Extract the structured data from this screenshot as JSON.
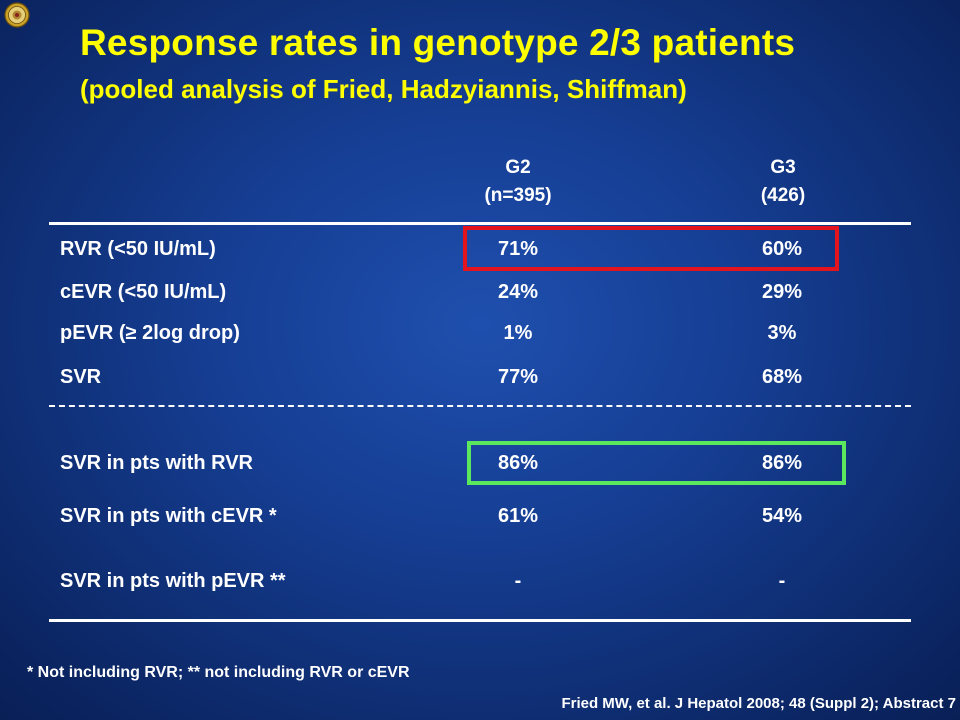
{
  "title": "Response rates in genotype 2/3 patients",
  "subtitle": "(pooled analysis of Fried, Hadzyiannis, Shiffman)",
  "columns": {
    "g2": {
      "name": "G2",
      "n": "(n=395)"
    },
    "g3": {
      "name": "G3",
      "n": "(426)"
    }
  },
  "rows": [
    {
      "label": "RVR (<50 IU/mL)",
      "g2": "71%",
      "g3": "60%"
    },
    {
      "label": "cEVR (<50  IU/mL)",
      "g2": "24%",
      "g3": "29%"
    },
    {
      "label": "pEVR (≥ 2log drop)",
      "g2": "1%",
      "g3": "3%"
    },
    {
      "label": "SVR",
      "g2": "77%",
      "g3": "68%"
    },
    {
      "label": "SVR in pts with RVR",
      "g2": "86%",
      "g3": "86%"
    },
    {
      "label": "SVR in pts with cEVR *",
      "g2": "61%",
      "g3": "54%"
    },
    {
      "label": "SVR in pts with pEVR **",
      "g2": "-",
      "g3": "-"
    }
  ],
  "highlight_colors": {
    "red": "#e3141e",
    "green": "#5ce85c"
  },
  "title_color": "#ffff00",
  "footnote": "* Not including RVR; ** not including RVR or cEVR",
  "citation": "Fried MW, et al. J Hepatol 2008; 48 (Suppl 2); Abstract 7",
  "logo_icon": "seal-icon"
}
